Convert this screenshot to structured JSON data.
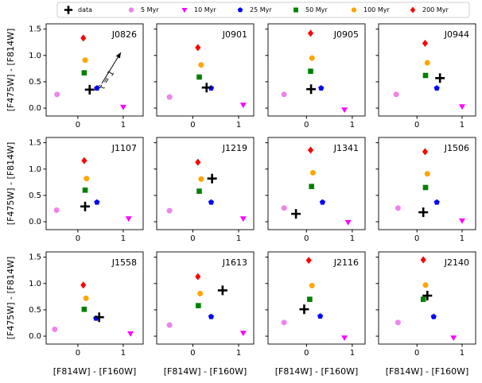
{
  "xlabel": "[F814W] - [F160W]",
  "ylabel": "[F475W] - [F814W]",
  "legend": [
    {
      "name": "data",
      "color": "#000000",
      "marker": "plus"
    },
    {
      "name": "5 Myr",
      "color": "#ee82ee",
      "marker": "circle"
    },
    {
      "name": "10 Myr",
      "color": "#ff00ff",
      "marker": "triangle-down"
    },
    {
      "name": "25 Myr",
      "color": "#0000ff",
      "marker": "pentagon"
    },
    {
      "name": "50 Myr",
      "color": "#008000",
      "marker": "square"
    },
    {
      "name": "100 Myr",
      "color": "#ffa500",
      "marker": "circle"
    },
    {
      "name": "200 Myr",
      "color": "#ff0000",
      "marker": "diamond"
    }
  ],
  "chart_data": [
    {
      "type": "scatter",
      "title": "J0826",
      "annotation": "τ̂ = 1",
      "xlim": [
        -0.7,
        1.44
      ],
      "ylim": [
        -0.15,
        1.6
      ],
      "xticks": [
        0,
        1
      ],
      "yticks": [
        {
          "value": 0,
          "label": "0.0"
        },
        0.5,
        {
          "value": 1,
          "label": "1.0"
        },
        1.5
      ],
      "series": [
        {
          "x": [
            0.26
          ],
          "values": [
            0.35
          ]
        },
        {
          "x": [
            -0.46
          ],
          "values": [
            0.26
          ]
        },
        {
          "x": [
            1.0
          ],
          "values": [
            0.02
          ]
        },
        {
          "x": [
            0.42
          ],
          "values": [
            0.38
          ]
        },
        {
          "x": [
            0.14
          ],
          "values": [
            0.67
          ]
        },
        {
          "x": [
            0.16
          ],
          "values": [
            0.91
          ]
        },
        {
          "x": [
            0.12
          ],
          "values": [
            1.33
          ]
        }
      ]
    },
    {
      "type": "scatter",
      "title": "J0901",
      "xlim": [
        -0.79,
        1.33
      ],
      "ylim": [
        -0.15,
        1.6
      ],
      "xticks": [
        0,
        1
      ],
      "yticks": [
        {
          "value": 0,
          "label": "0.0"
        },
        0.5,
        {
          "value": 1,
          "label": "1.0"
        },
        1.5
      ],
      "series": [
        {
          "x": [
            0.3
          ],
          "values": [
            0.39
          ]
        },
        {
          "x": [
            -0.51
          ],
          "values": [
            0.21
          ]
        },
        {
          "x": [
            1.1
          ],
          "values": [
            0.06
          ]
        },
        {
          "x": [
            0.4
          ],
          "values": [
            0.38
          ]
        },
        {
          "x": [
            0.14
          ],
          "values": [
            0.59
          ]
        },
        {
          "x": [
            0.18
          ],
          "values": [
            0.82
          ]
        },
        {
          "x": [
            0.11
          ],
          "values": [
            1.15
          ]
        }
      ]
    },
    {
      "type": "scatter",
      "title": "J0905",
      "xlim": [
        -0.84,
        1.28
      ],
      "ylim": [
        -0.15,
        1.6
      ],
      "xticks": [
        0,
        1
      ],
      "yticks": [
        {
          "value": 0,
          "label": "0.0"
        },
        0.5,
        {
          "value": 1,
          "label": "1.0"
        },
        1.5
      ],
      "series": [
        {
          "x": [
            0.1
          ],
          "values": [
            0.36
          ]
        },
        {
          "x": [
            -0.49
          ],
          "values": [
            0.26
          ]
        },
        {
          "x": [
            0.83
          ],
          "values": [
            -0.03
          ]
        },
        {
          "x": [
            0.32
          ],
          "values": [
            0.38
          ]
        },
        {
          "x": [
            0.09
          ],
          "values": [
            0.7
          ]
        },
        {
          "x": [
            0.12
          ],
          "values": [
            0.95
          ]
        },
        {
          "x": [
            0.09
          ],
          "values": [
            1.42
          ]
        }
      ]
    },
    {
      "type": "scatter",
      "title": "J0944",
      "xlim": [
        -0.85,
        1.3
      ],
      "ylim": [
        -0.15,
        1.6
      ],
      "xticks": [
        0,
        1
      ],
      "yticks": [
        {
          "value": 0,
          "label": "0.0"
        },
        0.5,
        {
          "value": 1,
          "label": "1.0"
        },
        1.5
      ],
      "series": [
        {
          "x": [
            0.51
          ],
          "values": [
            0.57
          ]
        },
        {
          "x": [
            -0.46
          ],
          "values": [
            0.26
          ]
        },
        {
          "x": [
            1.0
          ],
          "values": [
            0.03
          ]
        },
        {
          "x": [
            0.44
          ],
          "values": [
            0.38
          ]
        },
        {
          "x": [
            0.19
          ],
          "values": [
            0.62
          ]
        },
        {
          "x": [
            0.23
          ],
          "values": [
            0.86
          ]
        },
        {
          "x": [
            0.18
          ],
          "values": [
            1.23
          ]
        }
      ]
    },
    {
      "type": "scatter",
      "title": "J1107",
      "xlim": [
        -0.7,
        1.44
      ],
      "ylim": [
        -0.15,
        1.6
      ],
      "xticks": [
        0,
        1
      ],
      "yticks": [
        {
          "value": 0,
          "label": "0.0"
        },
        0.5,
        {
          "value": 1,
          "label": "1.0"
        },
        1.5
      ],
      "series": [
        {
          "x": [
            0.16
          ],
          "values": [
            0.29
          ]
        },
        {
          "x": [
            -0.47
          ],
          "values": [
            0.22
          ]
        },
        {
          "x": [
            1.12
          ],
          "values": [
            0.06
          ]
        },
        {
          "x": [
            0.42
          ],
          "values": [
            0.37
          ]
        },
        {
          "x": [
            0.16
          ],
          "values": [
            0.6
          ]
        },
        {
          "x": [
            0.19
          ],
          "values": [
            0.82
          ]
        },
        {
          "x": [
            0.14
          ],
          "values": [
            1.16
          ]
        }
      ]
    },
    {
      "type": "scatter",
      "title": "J1219",
      "xlim": [
        -0.79,
        1.33
      ],
      "ylim": [
        -0.15,
        1.6
      ],
      "xticks": [
        0,
        1
      ],
      "yticks": [
        {
          "value": 0,
          "label": "0.0"
        },
        0.5,
        {
          "value": 1,
          "label": "1.0"
        },
        1.5
      ],
      "series": [
        {
          "x": [
            0.42
          ],
          "values": [
            0.82
          ]
        },
        {
          "x": [
            -0.51
          ],
          "values": [
            0.21
          ]
        },
        {
          "x": [
            1.1
          ],
          "values": [
            0.06
          ]
        },
        {
          "x": [
            0.4
          ],
          "values": [
            0.37
          ]
        },
        {
          "x": [
            0.14
          ],
          "values": [
            0.58
          ]
        },
        {
          "x": [
            0.18
          ],
          "values": [
            0.81
          ]
        },
        {
          "x": [
            0.11
          ],
          "values": [
            1.13
          ]
        }
      ]
    },
    {
      "type": "scatter",
      "title": "J1341",
      "xlim": [
        -0.84,
        1.28
      ],
      "ylim": [
        -0.15,
        1.6
      ],
      "xticks": [
        0,
        1
      ],
      "yticks": [
        {
          "value": 0,
          "label": "0.0"
        },
        0.5,
        {
          "value": 1,
          "label": "1.0"
        },
        1.5
      ],
      "series": [
        {
          "x": [
            -0.23
          ],
          "values": [
            0.15
          ]
        },
        {
          "x": [
            -0.49
          ],
          "values": [
            0.26
          ]
        },
        {
          "x": [
            0.91
          ],
          "values": [
            -0.01
          ]
        },
        {
          "x": [
            0.35
          ],
          "values": [
            0.37
          ]
        },
        {
          "x": [
            0.11
          ],
          "values": [
            0.67
          ]
        },
        {
          "x": [
            0.14
          ],
          "values": [
            0.93
          ]
        },
        {
          "x": [
            0.09
          ],
          "values": [
            1.36
          ]
        }
      ]
    },
    {
      "type": "scatter",
      "title": "J1506",
      "xlim": [
        -0.85,
        1.3
      ],
      "ylim": [
        -0.15,
        1.6
      ],
      "xticks": [
        0,
        1
      ],
      "yticks": [
        {
          "value": 0,
          "label": "0.0"
        },
        0.5,
        {
          "value": 1,
          "label": "1.0"
        },
        1.5
      ],
      "series": [
        {
          "x": [
            0.14
          ],
          "values": [
            0.18
          ]
        },
        {
          "x": [
            -0.42
          ],
          "values": [
            0.26
          ]
        },
        {
          "x": [
            1.0
          ],
          "values": [
            0.02
          ]
        },
        {
          "x": [
            0.44
          ],
          "values": [
            0.37
          ]
        },
        {
          "x": [
            0.19
          ],
          "values": [
            0.65
          ]
        },
        {
          "x": [
            0.23
          ],
          "values": [
            0.91
          ]
        },
        {
          "x": [
            0.18
          ],
          "values": [
            1.33
          ]
        }
      ]
    },
    {
      "type": "scatter",
      "title": "J1558",
      "xlim": [
        -0.7,
        1.44
      ],
      "ylim": [
        -0.15,
        1.6
      ],
      "xticks": [
        0,
        1
      ],
      "yticks": [
        {
          "value": 0,
          "label": "0.0"
        },
        0.5,
        {
          "value": 1,
          "label": "1.0"
        },
        1.5
      ],
      "series": [
        {
          "x": [
            0.47
          ],
          "values": [
            0.36
          ]
        },
        {
          "x": [
            -0.51
          ],
          "values": [
            0.13
          ]
        },
        {
          "x": [
            1.16
          ],
          "values": [
            0.05
          ]
        },
        {
          "x": [
            0.4
          ],
          "values": [
            0.34
          ]
        },
        {
          "x": [
            0.14
          ],
          "values": [
            0.51
          ]
        },
        {
          "x": [
            0.18
          ],
          "values": [
            0.72
          ]
        },
        {
          "x": [
            0.12
          ],
          "values": [
            0.97
          ]
        }
      ]
    },
    {
      "type": "scatter",
      "title": "J1613",
      "xlim": [
        -0.79,
        1.33
      ],
      "ylim": [
        -0.15,
        1.6
      ],
      "xticks": [
        0,
        1
      ],
      "yticks": [
        {
          "value": 0,
          "label": "0.0"
        },
        0.5,
        {
          "value": 1,
          "label": "1.0"
        },
        1.5
      ],
      "series": [
        {
          "x": [
            0.65
          ],
          "values": [
            0.87
          ]
        },
        {
          "x": [
            -0.51
          ],
          "values": [
            0.21
          ]
        },
        {
          "x": [
            1.1
          ],
          "values": [
            0.06
          ]
        },
        {
          "x": [
            0.4
          ],
          "values": [
            0.37
          ]
        },
        {
          "x": [
            0.12
          ],
          "values": [
            0.58
          ]
        },
        {
          "x": [
            0.16
          ],
          "values": [
            0.81
          ]
        },
        {
          "x": [
            0.11
          ],
          "values": [
            1.13
          ]
        }
      ]
    },
    {
      "type": "scatter",
      "title": "J2116",
      "xlim": [
        -0.84,
        1.28
      ],
      "ylim": [
        -0.15,
        1.6
      ],
      "xticks": [
        0,
        1
      ],
      "yticks": [
        {
          "value": 0,
          "label": "0.0"
        },
        0.5,
        {
          "value": 1,
          "label": "1.0"
        },
        1.5
      ],
      "series": [
        {
          "x": [
            -0.05
          ],
          "values": [
            0.51
          ]
        },
        {
          "x": [
            -0.49
          ],
          "values": [
            0.26
          ]
        },
        {
          "x": [
            0.83
          ],
          "values": [
            -0.03
          ]
        },
        {
          "x": [
            0.3
          ],
          "values": [
            0.38
          ]
        },
        {
          "x": [
            0.07
          ],
          "values": [
            0.7
          ]
        },
        {
          "x": [
            0.12
          ],
          "values": [
            0.96
          ]
        },
        {
          "x": [
            0.05
          ],
          "values": [
            1.44
          ]
        }
      ]
    },
    {
      "type": "scatter",
      "title": "J2140",
      "xlim": [
        -0.85,
        1.3
      ],
      "ylim": [
        -0.15,
        1.6
      ],
      "xticks": [
        0,
        1
      ],
      "yticks": [
        {
          "value": 0,
          "label": "0.0"
        },
        0.5,
        {
          "value": 1,
          "label": "1.0"
        },
        1.5
      ],
      "series": [
        {
          "x": [
            0.23
          ],
          "values": [
            0.77
          ]
        },
        {
          "x": [
            -0.42
          ],
          "values": [
            0.26
          ]
        },
        {
          "x": [
            0.81
          ],
          "values": [
            -0.03
          ]
        },
        {
          "x": [
            0.37
          ],
          "values": [
            0.37
          ]
        },
        {
          "x": [
            0.14
          ],
          "values": [
            0.7
          ]
        },
        {
          "x": [
            0.19
          ],
          "values": [
            0.97
          ]
        },
        {
          "x": [
            0.14
          ],
          "values": [
            1.45
          ]
        }
      ]
    }
  ]
}
